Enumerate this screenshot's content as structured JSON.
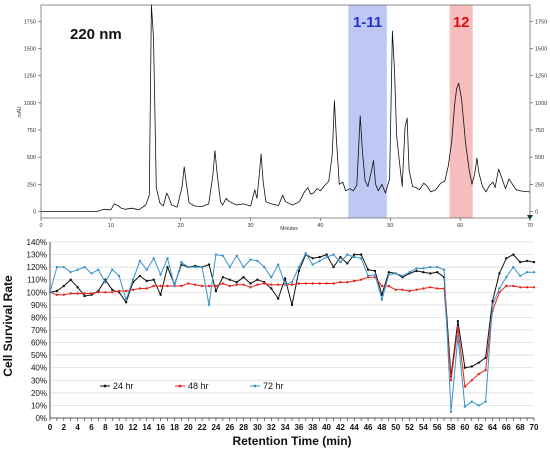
{
  "chart_data": [
    {
      "type": "line",
      "annotation": "220 nm",
      "ylabel": "mAU",
      "xlabel": "Minutes",
      "xlim": [
        0,
        70
      ],
      "ylim": [
        -60,
        1900
      ],
      "y_ticks": [
        0,
        250,
        500,
        750,
        1000,
        1250,
        1500,
        1750
      ],
      "x_ticks": [
        0,
        10,
        20,
        30,
        40,
        50,
        60,
        70
      ],
      "highlight_regions": [
        {
          "label": "1-11",
          "x_range": [
            44,
            49.5
          ],
          "color": "#aab4f2",
          "label_color": "#2233cc"
        },
        {
          "label": "12",
          "x_range": [
            58.5,
            61.8
          ],
          "color": "#f4a6a6",
          "label_color": "#dd1111"
        }
      ],
      "line_color": "#111111",
      "series": [
        {
          "values": [
            [
              0,
              0
            ],
            [
              8,
              0
            ],
            [
              9,
              20
            ],
            [
              10,
              15
            ],
            [
              10.5,
              70
            ],
            [
              11,
              55
            ],
            [
              11.5,
              30
            ],
            [
              12,
              20
            ],
            [
              13,
              30
            ],
            [
              14,
              15
            ],
            [
              15,
              60
            ],
            [
              15.5,
              150
            ],
            [
              15.8,
              1900
            ],
            [
              16.1,
              1600
            ],
            [
              16.5,
              220
            ],
            [
              17,
              80
            ],
            [
              17.5,
              50
            ],
            [
              18,
              170
            ],
            [
              18.3,
              130
            ],
            [
              18.7,
              60
            ],
            [
              19.5,
              40
            ],
            [
              20.2,
              230
            ],
            [
              20.5,
              410
            ],
            [
              20.8,
              260
            ],
            [
              21.2,
              80
            ],
            [
              22,
              50
            ],
            [
              23,
              45
            ],
            [
              24,
              70
            ],
            [
              24.6,
              330
            ],
            [
              24.9,
              560
            ],
            [
              25.2,
              360
            ],
            [
              25.7,
              90
            ],
            [
              26,
              60
            ],
            [
              26.5,
              120
            ],
            [
              27,
              90
            ],
            [
              28,
              60
            ],
            [
              29,
              70
            ],
            [
              30,
              50
            ],
            [
              30.6,
              200
            ],
            [
              30.9,
              120
            ],
            [
              31.2,
              310
            ],
            [
              31.5,
              530
            ],
            [
              31.8,
              280
            ],
            [
              32.2,
              90
            ],
            [
              33,
              70
            ],
            [
              34,
              55
            ],
            [
              34.6,
              150
            ],
            [
              35,
              90
            ],
            [
              36,
              60
            ],
            [
              37,
              90
            ],
            [
              37.7,
              180
            ],
            [
              38.2,
              220
            ],
            [
              38.6,
              160
            ],
            [
              39,
              170
            ],
            [
              39.5,
              210
            ],
            [
              40,
              190
            ],
            [
              40.5,
              230
            ],
            [
              41.2,
              280
            ],
            [
              41.7,
              530
            ],
            [
              42,
              1020
            ],
            [
              42.3,
              650
            ],
            [
              42.7,
              250
            ],
            [
              43.2,
              270
            ],
            [
              43.6,
              190
            ],
            [
              44.2,
              210
            ],
            [
              44.7,
              190
            ],
            [
              45.2,
              240
            ],
            [
              45.7,
              880
            ],
            [
              46,
              570
            ],
            [
              46.4,
              280
            ],
            [
              46.8,
              230
            ],
            [
              47.3,
              370
            ],
            [
              47.6,
              470
            ],
            [
              47.9,
              250
            ],
            [
              48.3,
              190
            ],
            [
              48.8,
              250
            ],
            [
              49.3,
              170
            ],
            [
              49.9,
              300
            ],
            [
              50.3,
              1660
            ],
            [
              50.6,
              1300
            ],
            [
              50.9,
              700
            ],
            [
              51.3,
              460
            ],
            [
              51.7,
              230
            ],
            [
              52.1,
              770
            ],
            [
              52.4,
              860
            ],
            [
              52.7,
              380
            ],
            [
              53.2,
              230
            ],
            [
              53.7,
              220
            ],
            [
              54.2,
              200
            ],
            [
              54.8,
              260
            ],
            [
              55.3,
              230
            ],
            [
              55.8,
              180
            ],
            [
              56.5,
              200
            ],
            [
              57.2,
              260
            ],
            [
              57.8,
              280
            ],
            [
              58.3,
              420
            ],
            [
              58.8,
              650
            ],
            [
              59.2,
              980
            ],
            [
              59.5,
              1130
            ],
            [
              59.8,
              1180
            ],
            [
              60.2,
              1040
            ],
            [
              60.8,
              620
            ],
            [
              61.3,
              380
            ],
            [
              61.7,
              250
            ],
            [
              62.1,
              350
            ],
            [
              62.4,
              490
            ],
            [
              62.7,
              350
            ],
            [
              63.2,
              230
            ],
            [
              63.7,
              180
            ],
            [
              64.2,
              240
            ],
            [
              64.7,
              270
            ],
            [
              65,
              220
            ],
            [
              65.5,
              390
            ],
            [
              66,
              300
            ],
            [
              66.5,
              210
            ],
            [
              67,
              300
            ],
            [
              67.5,
              250
            ],
            [
              68,
              200
            ],
            [
              69,
              185
            ],
            [
              70,
              180
            ]
          ]
        }
      ]
    },
    {
      "type": "line",
      "xlabel": "Retention Time (min)",
      "ylabel": "Cell Survival Rate",
      "xlim": [
        0,
        70
      ],
      "ylim": [
        0,
        140
      ],
      "x_ticks": [
        0,
        1,
        2,
        3,
        4,
        5,
        6,
        7,
        8,
        9,
        10,
        11,
        12,
        13,
        14,
        15,
        16,
        17,
        18,
        19,
        20,
        21,
        22,
        23,
        24,
        25,
        26,
        27,
        28,
        29,
        30,
        31,
        32,
        33,
        34,
        35,
        36,
        37,
        38,
        39,
        40,
        41,
        42,
        43,
        44,
        45,
        46,
        47,
        48,
        49,
        50,
        51,
        52,
        53,
        54,
        55,
        56,
        57,
        58,
        59,
        60,
        61,
        62,
        63,
        64,
        65,
        66,
        67,
        68,
        69,
        70
      ],
      "x_tick_labels": [
        "0",
        "2",
        "4",
        "6",
        "8",
        "10",
        "12",
        "14",
        "16",
        "18",
        "20",
        "22",
        "24",
        "26",
        "28",
        "30",
        "32",
        "34",
        "36",
        "38",
        "40",
        "42",
        "44",
        "46",
        "48",
        "50",
        "52",
        "54",
        "56",
        "58",
        "60",
        "62",
        "64",
        "66",
        "68",
        "70"
      ],
      "y_ticks": [
        "0%",
        "10%",
        "20%",
        "30%",
        "40%",
        "50%",
        "60%",
        "70%",
        "80%",
        "90%",
        "100%",
        "110%",
        "120%",
        "130%",
        "140%"
      ],
      "grid": "horizontal",
      "legend": "bottom-left",
      "series": [
        {
          "name": "24 hr",
          "color": "#111111",
          "values": [
            100,
            101,
            105,
            110,
            104,
            97,
            98,
            101,
            110,
            102,
            100,
            92,
            108,
            113,
            109,
            110,
            98,
            120,
            106,
            122,
            120,
            121,
            120,
            122,
            101,
            112,
            110,
            108,
            112,
            107,
            110,
            108,
            103,
            95,
            111,
            90,
            117,
            130,
            127,
            128,
            130,
            120,
            128,
            123,
            130,
            130,
            118,
            117,
            98,
            116,
            115,
            112,
            115,
            117,
            116,
            115,
            116,
            112,
            33,
            77,
            40,
            41,
            44,
            48,
            93,
            115,
            127,
            130,
            124,
            125,
            124
          ]
        },
        {
          "name": "48 hr",
          "color": "#e8231c",
          "values": [
            100,
            98,
            98,
            99,
            99,
            99,
            99,
            100,
            100,
            100,
            101,
            101,
            102,
            103,
            103,
            105,
            105,
            105,
            105,
            105,
            107,
            106,
            105,
            105,
            105,
            107,
            105,
            106,
            106,
            104,
            106,
            107,
            106,
            106,
            106,
            106,
            107,
            107,
            107,
            107,
            107,
            107,
            108,
            108,
            109,
            110,
            112,
            112,
            105,
            105,
            102,
            102,
            101,
            102,
            103,
            104,
            103,
            103,
            30,
            72,
            25,
            30,
            35,
            38,
            85,
            100,
            105,
            105,
            104,
            104,
            104
          ]
        },
        {
          "name": "72 hr",
          "color": "#3a95c9",
          "values": [
            100,
            120,
            120,
            116,
            118,
            120,
            115,
            118,
            108,
            118,
            113,
            94,
            110,
            125,
            118,
            127,
            114,
            127,
            105,
            124,
            120,
            120,
            120,
            90,
            130,
            129,
            120,
            129,
            120,
            126,
            125,
            120,
            112,
            122,
            106,
            108,
            120,
            131,
            122,
            125,
            128,
            130,
            124,
            130,
            128,
            127,
            113,
            114,
            94,
            114,
            115,
            113,
            116,
            119,
            119,
            120,
            120,
            118,
            5,
            65,
            9,
            13,
            10,
            13,
            90,
            103,
            112,
            120,
            113,
            116,
            116
          ]
        }
      ]
    }
  ]
}
